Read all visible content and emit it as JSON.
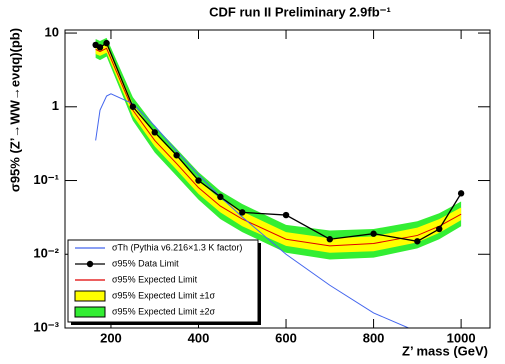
{
  "chart_data": {
    "type": "limit",
    "title": "CDF run II Preliminary 2.9fb⁻¹",
    "x_label": "Z’ mass (GeV)",
    "y_label": "σ95% (Z’→WW→eνqq)(pb)",
    "xlim": [
      95,
      1066
    ],
    "xticks": [
      200,
      400,
      600,
      800,
      1000
    ],
    "ylim": [
      0.001,
      11
    ],
    "log_y": true,
    "yticks": [
      {
        "value": 0.001,
        "label": "10⁻³"
      },
      {
        "value": 0.01,
        "label": "10⁻²"
      },
      {
        "value": 0.1,
        "label": "10⁻¹"
      },
      1,
      10
    ],
    "bands": [
      {
        "name": "σ95% Expected Limit ±2σ",
        "color": "#33ee33",
        "x": [
          165,
          175,
          190,
          250,
          300,
          350,
          400,
          450,
          500,
          600,
          700,
          800,
          900,
          950,
          1000
        ],
        "low": [
          4.6,
          4.3,
          4.8,
          0.65,
          0.24,
          0.115,
          0.055,
          0.03,
          0.02,
          0.0105,
          0.0085,
          0.009,
          0.012,
          0.016,
          0.024
        ],
        "high": [
          8.3,
          7.8,
          8.6,
          1.35,
          0.55,
          0.27,
          0.13,
          0.072,
          0.048,
          0.025,
          0.021,
          0.022,
          0.028,
          0.036,
          0.052
        ]
      },
      {
        "name": "σ95% Expected Limit ±1σ",
        "color": "#ffff00",
        "x": [
          165,
          175,
          190,
          250,
          300,
          350,
          400,
          450,
          500,
          600,
          700,
          800,
          900,
          950,
          1000
        ],
        "low": [
          5.2,
          4.9,
          5.4,
          0.76,
          0.29,
          0.14,
          0.066,
          0.037,
          0.024,
          0.013,
          0.0105,
          0.011,
          0.0145,
          0.0195,
          0.029
        ],
        "high": [
          7.0,
          6.6,
          7.3,
          1.1,
          0.44,
          0.215,
          0.1,
          0.056,
          0.038,
          0.02,
          0.0165,
          0.0175,
          0.023,
          0.03,
          0.043
        ]
      }
    ],
    "series": [
      {
        "name": "σTh (Pythia v6.216×1.3 K factor)",
        "color": "#4466ee",
        "markers": false,
        "x": [
          165,
          175,
          190,
          200,
          250,
          300,
          350,
          400,
          450,
          500,
          600,
          700,
          800,
          880
        ],
        "values": [
          0.35,
          0.9,
          1.4,
          1.5,
          1.1,
          0.55,
          0.25,
          0.12,
          0.06,
          0.032,
          0.01,
          0.0038,
          0.0016,
          0.001
        ]
      },
      {
        "name": "σ95% Data Limit",
        "color": "#000000",
        "markers": true,
        "x": [
          165,
          175,
          190,
          250,
          300,
          350,
          400,
          450,
          500,
          600,
          700,
          800,
          900,
          950,
          1000
        ],
        "values": [
          6.9,
          6.4,
          7.3,
          1.0,
          0.45,
          0.22,
          0.1,
          0.06,
          0.037,
          0.034,
          0.016,
          0.019,
          0.015,
          0.022,
          0.067
        ]
      },
      {
        "name": "σ95% Expected Limit",
        "color": "#e00000",
        "markers": false,
        "x": [
          165,
          175,
          190,
          250,
          300,
          350,
          400,
          450,
          500,
          600,
          700,
          800,
          900,
          950,
          1000
        ],
        "values": [
          6.0,
          5.6,
          6.2,
          0.9,
          0.35,
          0.17,
          0.08,
          0.045,
          0.03,
          0.016,
          0.013,
          0.014,
          0.018,
          0.024,
          0.035
        ]
      }
    ],
    "legend_order": [
      "series.0",
      "series.1",
      "series.2",
      "bands.1",
      "bands.0"
    ]
  }
}
